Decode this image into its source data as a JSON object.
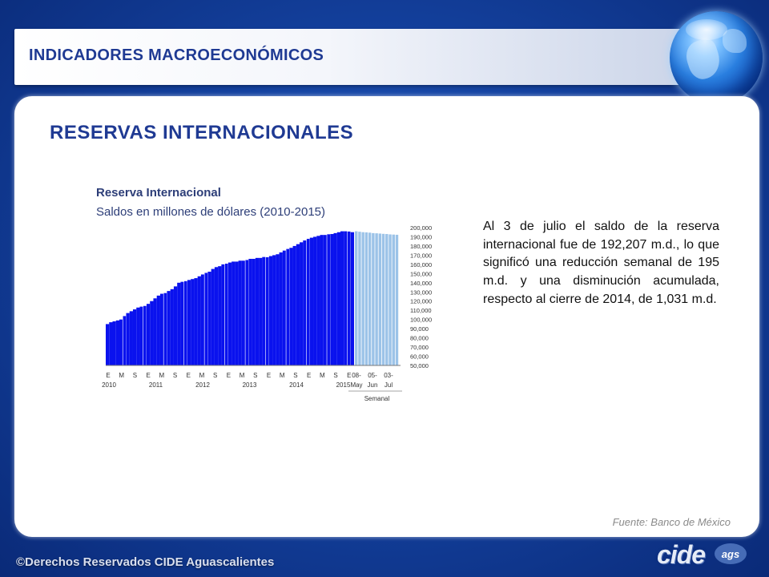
{
  "header": {
    "title": "INDICADORES MACROECONÓMICOS"
  },
  "section": {
    "title": "RESERVAS  INTERNACIONALES"
  },
  "description": "Al 3 de julio el saldo de la reserva internacional fue de 192,207 m.d., lo que significó una reducción semanal de 195 m.d. y una disminución acumulada, respecto al cierre de 2014, de 1,031 m.d.",
  "source": "Fuente: Banco de México",
  "footer": {
    "copyright": "©Derechos Reservados CIDE Aguascalientes",
    "logo_text": "cide",
    "logo_sub": "ags"
  },
  "colors": {
    "accent": "#1f3a93",
    "bar_monthly": "#0a12ee",
    "bar_weekly": "#9cc3e8"
  },
  "chart_data": {
    "type": "bar",
    "title": "Reserva Internacional",
    "subtitle": "Saldos en millones de dólares (2010-2015)",
    "ylim": [
      50000,
      200000
    ],
    "y_ticks": [
      "200,000",
      "190,000",
      "180,000",
      "170,000",
      "160,000",
      "150,000",
      "140,000",
      "130,000",
      "120,000",
      "110,000",
      "100,000",
      "90,000",
      "80,000",
      "70,000",
      "60,000",
      "50,000"
    ],
    "y_axis_position": "right",
    "x_month_labels": [
      "E",
      "M",
      "S",
      "E",
      "M",
      "S",
      "E",
      "M",
      "S",
      "E",
      "M",
      "S",
      "E",
      "M",
      "S",
      "E",
      "M",
      "S",
      "E"
    ],
    "x_year_labels": [
      "2010",
      "2011",
      "2012",
      "2013",
      "2014",
      "2015"
    ],
    "weekly_labels_top": [
      "08-",
      "05-",
      "03-"
    ],
    "weekly_labels_bottom": [
      "May",
      "Jun",
      "Jul"
    ],
    "weekly_group_label": "Semanal",
    "series": [
      {
        "values": [
          95000,
          97000,
          98000,
          99000,
          100000,
          104000,
          107000,
          109000,
          111000,
          113000,
          114000,
          115000,
          117000,
          120000,
          123000,
          126000,
          128000,
          129000,
          131000,
          133000,
          136000,
          140000,
          141000,
          142000,
          143000,
          144000,
          145000,
          147000,
          149000,
          151000,
          152000,
          155000,
          157000,
          158000,
          160000,
          161000,
          162000,
          163000,
          163000,
          164000,
          164000,
          165000,
          166000,
          166000,
          167000,
          167000,
          168000,
          168000,
          169000,
          170000,
          171000,
          173000,
          175000,
          177000,
          178000,
          180000,
          182000,
          184000,
          186000,
          188000,
          189000,
          190000,
          191000,
          192000,
          192000,
          193000,
          193000,
          194000,
          195000,
          196000,
          196000,
          196000,
          195000
        ],
        "weekly": [
          196000,
          195500,
          195000,
          194800,
          194500,
          194000,
          193800,
          193500,
          193200,
          193000,
          192600,
          192400,
          192207
        ]
      }
    ]
  }
}
